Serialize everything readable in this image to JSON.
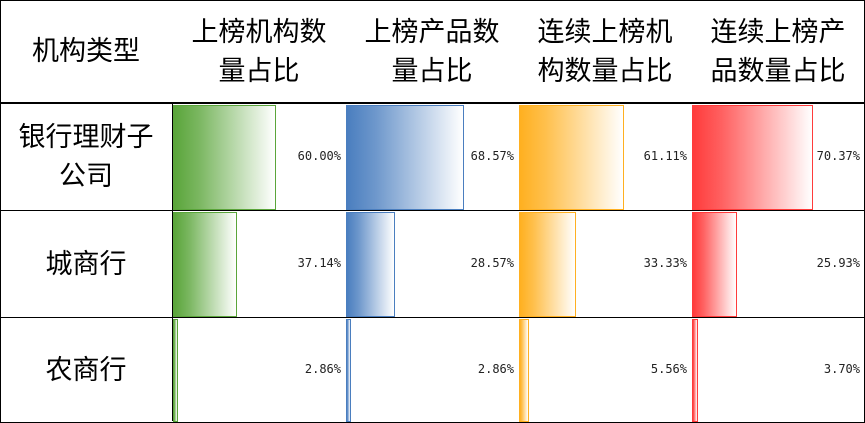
{
  "chart_data": {
    "type": "table",
    "row_header": "机构类型",
    "columns": [
      {
        "label": "上榜机构数量占比",
        "color": "#5aa53a"
      },
      {
        "label": "上榜产品数量占比",
        "color": "#4a7ebf"
      },
      {
        "label": "连续上榜机构数量占比",
        "color": "#ffb020"
      },
      {
        "label": "连续上榜产品数量占比",
        "color": "#ff3b3b"
      }
    ],
    "rows": [
      {
        "label": "银行理财子公司",
        "values": [
          60.0,
          68.57,
          61.11,
          70.37
        ],
        "texts": [
          "60.00%",
          "68.57%",
          "61.11%",
          "70.37%"
        ]
      },
      {
        "label": "城商行",
        "values": [
          37.14,
          28.57,
          33.33,
          25.93
        ],
        "texts": [
          "37.14%",
          "28.57%",
          "33.33%",
          "25.93%"
        ]
      },
      {
        "label": "农商行",
        "values": [
          2.86,
          2.86,
          5.56,
          3.7
        ],
        "texts": [
          "2.86%",
          "2.86%",
          "5.56%",
          "3.70%"
        ]
      }
    ],
    "max_value": 100
  }
}
